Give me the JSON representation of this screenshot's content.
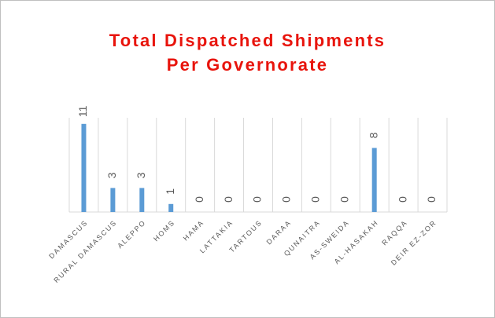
{
  "chart_data": {
    "type": "bar",
    "title": "Total Dispatched Shipments Per Governorate",
    "categories": [
      "DAMASCUS",
      "RURAL DAMASCUS",
      "ALEPPO",
      "HOMS",
      "HAMA",
      "LATTAKIA",
      "TARTOUS",
      "DARAA",
      "QUNAITRA",
      "AS-SWEIDA",
      "AL-HASAKAH",
      "RAQQA",
      "DEIR EZ-ZOR"
    ],
    "values": [
      11,
      3,
      3,
      1,
      0,
      0,
      0,
      0,
      0,
      0,
      8,
      0,
      0
    ],
    "color": "#5b9bd5"
  }
}
